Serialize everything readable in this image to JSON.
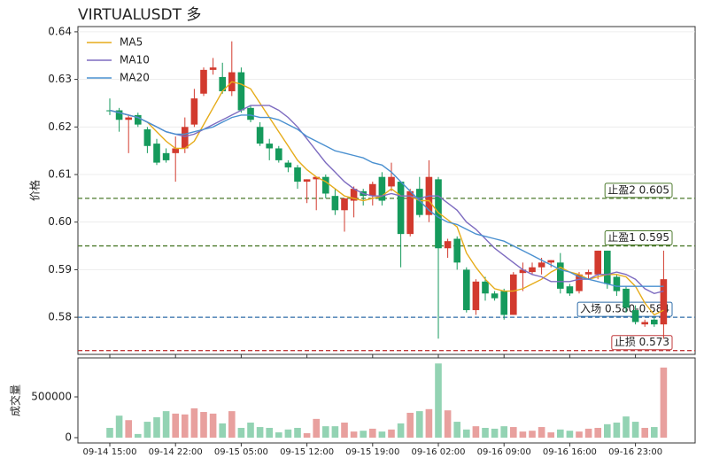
{
  "chart_data": {
    "type": "candlestick",
    "title": "VIRTUALUSDT  多",
    "ylabel": "价格",
    "categories": [
      "09-14 15:00",
      "09-14 16:00",
      "09-14 17:00",
      "09-14 18:00",
      "09-14 19:00",
      "09-14 20:00",
      "09-14 21:00",
      "09-14 22:00",
      "09-14 23:00",
      "09-15 00:00",
      "09-15 01:00",
      "09-15 02:00",
      "09-15 03:00",
      "09-15 04:00",
      "09-15 05:00",
      "09-15 06:00",
      "09-15 07:00",
      "09-15 08:00",
      "09-15 09:00",
      "09-15 10:00",
      "09-15 11:00",
      "09-15 12:00",
      "09-15 13:00",
      "09-15 14:00",
      "09-15 15:00",
      "09-15 16:00",
      "09-15 17:00",
      "09-15 18:00",
      "09-15 19:00",
      "09-15 20:00",
      "09-15 21:00",
      "09-15 22:00",
      "09-15 23:00",
      "09-16 00:00",
      "09-16 01:00",
      "09-16 02:00",
      "09-16 03:00",
      "09-16 04:00",
      "09-16 05:00",
      "09-16 06:00",
      "09-16 07:00",
      "09-16 08:00",
      "09-16 09:00",
      "09-16 10:00",
      "09-16 11:00",
      "09-16 12:00",
      "09-16 13:00",
      "09-16 14:00",
      "09-16 15:00",
      "09-16 16:00",
      "09-16 17:00",
      "09-16 18:00",
      "09-16 19:00",
      "09-16 20:00",
      "09-16 21:00",
      "09-16 22:00",
      "09-16 23:00",
      "09-17 00:00",
      "09-17 01:00",
      "09-17 02:00"
    ],
    "xticks": [
      "09-14 15:00",
      "09-14 22:00",
      "09-15 05:00",
      "09-15 12:00",
      "09-15 19:00",
      "09-16 02:00",
      "09-16 09:00",
      "09-16 16:00",
      "09-16 23:00"
    ],
    "open": [
      0.6235,
      0.6235,
      0.6215,
      0.6225,
      0.6195,
      0.6165,
      0.6145,
      0.6145,
      0.6155,
      0.6205,
      0.627,
      0.632,
      0.6305,
      0.6275,
      0.6315,
      0.624,
      0.62,
      0.6165,
      0.6155,
      0.6125,
      0.6115,
      0.6085,
      0.609,
      0.6095,
      0.6055,
      0.6025,
      0.6045,
      0.6065,
      0.6055,
      0.6095,
      0.6075,
      0.6085,
      0.5975,
      0.607,
      0.6015,
      0.609,
      0.5945,
      0.5965,
      0.59,
      0.5815,
      0.5875,
      0.585,
      0.5855,
      0.5805,
      0.5893,
      0.5895,
      0.5905,
      0.5915,
      0.5915,
      0.5865,
      0.5855,
      0.589,
      0.589,
      0.594,
      0.5885,
      0.586,
      0.5815,
      0.5785,
      0.5795,
      0.5785
    ],
    "close": [
      0.6233,
      0.6215,
      0.622,
      0.6205,
      0.616,
      0.6125,
      0.613,
      0.6155,
      0.62,
      0.626,
      0.632,
      0.6325,
      0.6275,
      0.6315,
      0.6235,
      0.6215,
      0.6165,
      0.6155,
      0.613,
      0.6115,
      0.6085,
      0.609,
      0.6095,
      0.606,
      0.6025,
      0.605,
      0.607,
      0.6055,
      0.608,
      0.6045,
      0.6095,
      0.5975,
      0.6065,
      0.6015,
      0.6095,
      0.5945,
      0.596,
      0.5915,
      0.5815,
      0.5875,
      0.585,
      0.584,
      0.5805,
      0.589,
      0.59,
      0.5905,
      0.5915,
      0.592,
      0.586,
      0.585,
      0.589,
      0.5895,
      0.594,
      0.587,
      0.5855,
      0.582,
      0.579,
      0.579,
      0.5785,
      0.588
    ],
    "high": [
      0.626,
      0.624,
      0.6225,
      0.623,
      0.62,
      0.6175,
      0.6155,
      0.618,
      0.622,
      0.628,
      0.6325,
      0.6345,
      0.6335,
      0.638,
      0.6325,
      0.6245,
      0.621,
      0.6175,
      0.616,
      0.613,
      0.612,
      0.609,
      0.6095,
      0.61,
      0.607,
      0.605,
      0.6075,
      0.607,
      0.6085,
      0.6105,
      0.6125,
      0.6085,
      0.607,
      0.6095,
      0.613,
      0.6095,
      0.5965,
      0.597,
      0.5905,
      0.588,
      0.5885,
      0.5855,
      0.586,
      0.5895,
      0.5915,
      0.5915,
      0.5925,
      0.592,
      0.5935,
      0.587,
      0.5895,
      0.59,
      0.594,
      0.594,
      0.589,
      0.5865,
      0.5825,
      0.5795,
      0.58,
      0.594
    ],
    "low": [
      0.6225,
      0.619,
      0.6145,
      0.62,
      0.6145,
      0.612,
      0.6125,
      0.6085,
      0.6145,
      0.62,
      0.6265,
      0.631,
      0.627,
      0.6265,
      0.623,
      0.621,
      0.616,
      0.613,
      0.6125,
      0.6105,
      0.607,
      0.604,
      0.6025,
      0.605,
      0.6015,
      0.598,
      0.601,
      0.6035,
      0.6035,
      0.6035,
      0.6065,
      0.5905,
      0.597,
      0.601,
      0.6,
      0.5755,
      0.5925,
      0.59,
      0.581,
      0.5805,
      0.5835,
      0.5835,
      0.5795,
      0.5805,
      0.5855,
      0.589,
      0.589,
      0.5905,
      0.585,
      0.5845,
      0.585,
      0.588,
      0.588,
      0.586,
      0.5845,
      0.581,
      0.5785,
      0.578,
      0.578,
      0.5755
    ],
    "up_color": "#d23a2e",
    "down_color": "#159a5c",
    "series": [
      {
        "name": "MA5",
        "color": "#e6ac1a",
        "values": [
          0.6235,
          0.623,
          0.6225,
          0.622,
          0.621,
          0.619,
          0.617,
          0.6155,
          0.6155,
          0.617,
          0.6205,
          0.624,
          0.6275,
          0.6295,
          0.629,
          0.628,
          0.625,
          0.622,
          0.619,
          0.616,
          0.613,
          0.611,
          0.6095,
          0.6085,
          0.607,
          0.6055,
          0.605,
          0.6045,
          0.605,
          0.6055,
          0.607,
          0.6055,
          0.6055,
          0.6045,
          0.6045,
          0.602,
          0.6005,
          0.599,
          0.5935,
          0.5905,
          0.588,
          0.586,
          0.5855,
          0.5855,
          0.586,
          0.587,
          0.588,
          0.5895,
          0.5905,
          0.5895,
          0.589,
          0.588,
          0.5885,
          0.589,
          0.589,
          0.5885,
          0.5865,
          0.583,
          0.5805,
          0.5815
        ]
      },
      {
        "name": "MA10",
        "color": "#7e6cc0",
        "values": [
          0.6235,
          0.623,
          0.6225,
          0.622,
          0.621,
          0.62,
          0.619,
          0.6185,
          0.618,
          0.6185,
          0.6195,
          0.6205,
          0.6215,
          0.6225,
          0.6235,
          0.6245,
          0.6245,
          0.6245,
          0.6235,
          0.622,
          0.62,
          0.6175,
          0.615,
          0.6125,
          0.6105,
          0.6085,
          0.607,
          0.606,
          0.6055,
          0.6055,
          0.606,
          0.6055,
          0.6055,
          0.605,
          0.6055,
          0.6055,
          0.604,
          0.6025,
          0.6,
          0.5985,
          0.5965,
          0.5945,
          0.593,
          0.5915,
          0.59,
          0.589,
          0.5885,
          0.5875,
          0.5875,
          0.5875,
          0.588,
          0.588,
          0.589,
          0.589,
          0.5895,
          0.589,
          0.588,
          0.586,
          0.585,
          0.5855
        ]
      },
      {
        "name": "MA20",
        "color": "#4a90d0",
        "values": [
          0.6235,
          0.623,
          0.6225,
          0.622,
          0.621,
          0.62,
          0.619,
          0.6185,
          0.6185,
          0.619,
          0.6195,
          0.62,
          0.621,
          0.622,
          0.6225,
          0.6225,
          0.622,
          0.622,
          0.6215,
          0.6205,
          0.6195,
          0.618,
          0.617,
          0.616,
          0.615,
          0.6145,
          0.614,
          0.6135,
          0.6125,
          0.612,
          0.6105,
          0.6085,
          0.6065,
          0.6045,
          0.6025,
          0.601,
          0.6,
          0.5995,
          0.5985,
          0.5975,
          0.597,
          0.5965,
          0.596,
          0.595,
          0.594,
          0.593,
          0.592,
          0.591,
          0.59,
          0.5895,
          0.5885,
          0.588,
          0.5875,
          0.587,
          0.5865,
          0.5865,
          0.5865,
          0.5865,
          0.5865,
          0.5865
        ]
      }
    ],
    "levels": [
      {
        "label": "止盈2 0.605",
        "value": 0.605,
        "color": "#4c7a2c"
      },
      {
        "label": "止盈1 0.595",
        "value": 0.595,
        "color": "#4c7a2c"
      },
      {
        "label": "入场 0.580-0.584",
        "value": 0.58,
        "color": "#2d6ca8"
      },
      {
        "label": "止损 0.573",
        "value": 0.573,
        "color": "#c0393b"
      }
    ],
    "ylim": [
      0.5722,
      0.6411
    ],
    "yticks": [
      0.58,
      0.59,
      {
        "value": 0.6,
        "label": "0.60"
      },
      0.61,
      0.62,
      0.63,
      0.64
    ],
    "grid": true,
    "legend": "upper left",
    "volume_label": "成交量",
    "volume": [
      120000,
      270000,
      215000,
      45000,
      195000,
      250000,
      325000,
      295000,
      285000,
      360000,
      315000,
      295000,
      175000,
      325000,
      120000,
      185000,
      130000,
      120000,
      65000,
      100000,
      120000,
      55000,
      230000,
      140000,
      140000,
      185000,
      75000,
      85000,
      110000,
      75000,
      100000,
      175000,
      305000,
      325000,
      350000,
      910000,
      335000,
      195000,
      100000,
      140000,
      120000,
      110000,
      140000,
      130000,
      75000,
      85000,
      130000,
      65000,
      100000,
      85000,
      75000,
      110000,
      120000,
      165000,
      185000,
      260000,
      195000,
      120000,
      130000,
      860000
    ],
    "volume_up_color": "#e8a09e",
    "volume_down_color": "#93d3b3",
    "volume_ylim": [
      -65000,
      978000
    ],
    "volume_yticks": [
      0,
      500000
    ]
  }
}
